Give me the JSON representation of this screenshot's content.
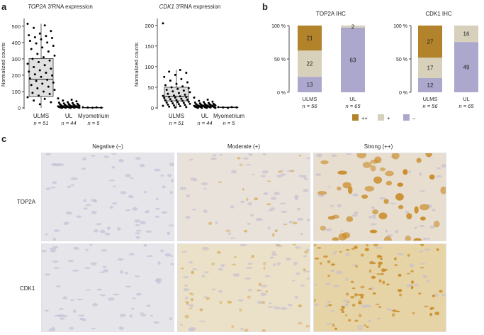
{
  "panels": {
    "a": "a",
    "b": "b",
    "c": "c"
  },
  "panel_a": {
    "charts": [
      {
        "title_gene": "TOP2A",
        "title_suffix": " 3′RNA expression",
        "ylabel": "Normalized counts",
        "yticks": [
          0,
          100,
          200,
          300,
          400,
          500
        ],
        "ylim": [
          0,
          530
        ],
        "groups": [
          {
            "name": "ULMS",
            "n": "n = 51",
            "q1": 70,
            "median": 175,
            "q3": 302,
            "wlo": 0,
            "whi": 515,
            "points": [
              515,
              505,
              490,
              470,
              455,
              445,
              440,
              432,
              428,
              420,
              410,
              400,
              395,
              380,
              370,
              360,
              345,
              330,
              320,
              310,
              300,
              290,
              280,
              270,
              262,
              250,
              240,
              230,
              222,
              215,
              205,
              198,
              190,
              180,
              172,
              165,
              155,
              148,
              140,
              130,
              120,
              110,
              100,
              92,
              85,
              75,
              65,
              55,
              45,
              35,
              22
            ]
          },
          {
            "name": "UL",
            "n": "n = 44",
            "q1": 2,
            "median": 7,
            "q3": 14,
            "wlo": 0,
            "whi": 28,
            "points": [
              58,
              50,
              45,
              40,
              35,
              32,
              30,
              27,
              25,
              24,
              22,
              20,
              19,
              18,
              17,
              16,
              15,
              14,
              13,
              12,
              11,
              10,
              10,
              9,
              8,
              8,
              7,
              7,
              6,
              6,
              5,
              5,
              4,
              4,
              3,
              3,
              2,
              2,
              2,
              1,
              1,
              1,
              0,
              0
            ]
          },
          {
            "name": "Myometrium",
            "n": "n = 5",
            "q1": 1,
            "median": 2,
            "q3": 3,
            "wlo": 0,
            "whi": 4,
            "points": [
              4,
              3,
              2,
              1,
              1
            ]
          }
        ]
      },
      {
        "title_gene": "CDK1",
        "title_suffix": " 3′RNA expression",
        "ylabel": "Normalized counts",
        "yticks": [
          0,
          50,
          100,
          150,
          200
        ],
        "ylim": [
          0,
          210
        ],
        "groups": [
          {
            "name": "ULMS",
            "n": "n = 51",
            "q1": 17,
            "median": 28,
            "q3": 50,
            "wlo": 0,
            "whi": 92,
            "points": [
              205,
              92,
              88,
              85,
              80,
              75,
              70,
              66,
              62,
              58,
              55,
              52,
              50,
              48,
              46,
              44,
              42,
              40,
              38,
              36,
              34,
              32,
              30,
              29,
              28,
              27,
              26,
              25,
              24,
              22,
              21,
              20,
              19,
              18,
              17,
              16,
              15,
              14,
              13,
              12,
              11,
              10,
              9,
              8,
              7,
              6,
              5,
              4,
              3,
              2,
              1
            ]
          },
          {
            "name": "UL",
            "n": "n = 44",
            "q1": 3,
            "median": 5,
            "q3": 7,
            "wlo": 0,
            "whi": 12,
            "points": [
              25,
              20,
              17,
              15,
              14,
              13,
              12,
              11,
              10,
              10,
              9,
              9,
              8,
              8,
              7,
              7,
              7,
              6,
              6,
              6,
              5,
              5,
              5,
              5,
              4,
              4,
              4,
              4,
              3,
              3,
              3,
              3,
              2,
              2,
              2,
              2,
              1,
              1,
              1,
              1,
              0,
              0,
              0,
              0
            ]
          },
          {
            "name": "Myometrium",
            "n": "n = 5",
            "q1": 1,
            "median": 1,
            "q3": 2,
            "wlo": 0,
            "whi": 2,
            "points": [
              2,
              2,
              1,
              1,
              0
            ]
          }
        ]
      }
    ]
  },
  "panel_b": {
    "colors": {
      "++": "#b2832a",
      "+": "#d7d1bb",
      "−": "#aca8cd"
    },
    "ticks": [
      "0 %",
      "50 %",
      "100 %"
    ],
    "legend": [
      {
        "key": "++",
        "label": "++"
      },
      {
        "key": "+",
        "label": "+"
      },
      {
        "key": "−",
        "label": "–"
      }
    ],
    "charts": [
      {
        "title": "TOP2A IHC",
        "bars": [
          {
            "name": "ULMS",
            "n": "n = 56",
            "total": 56,
            "segments": [
              {
                "key": "−",
                "count": 13
              },
              {
                "key": "+",
                "count": 22
              },
              {
                "key": "++",
                "count": 21
              }
            ]
          },
          {
            "name": "UL",
            "n": "n = 65",
            "total": 65,
            "segments": [
              {
                "key": "−",
                "count": 63
              },
              {
                "key": "+",
                "count": 2
              }
            ]
          }
        ]
      },
      {
        "title": "CDK1 IHC",
        "bars": [
          {
            "name": "ULMS",
            "n": "n = 56",
            "total": 56,
            "segments": [
              {
                "key": "−",
                "count": 12
              },
              {
                "key": "+",
                "count": 17
              },
              {
                "key": "++",
                "count": 27
              }
            ]
          },
          {
            "name": "UL",
            "n": "n = 65",
            "total": 65,
            "segments": [
              {
                "key": "−",
                "count": 49
              },
              {
                "key": "+",
                "count": 16
              }
            ]
          }
        ]
      }
    ]
  },
  "panel_c": {
    "columns": [
      "Negative (–)",
      "Moderate (+)",
      "Strong (++)"
    ],
    "rows": [
      "TOP2A",
      "CDK1"
    ]
  }
}
